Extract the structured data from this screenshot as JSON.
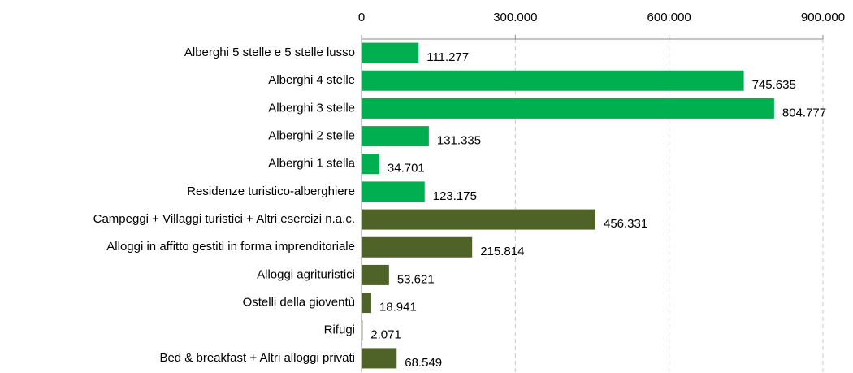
{
  "chart_data": {
    "type": "bar",
    "orientation": "horizontal",
    "categories": [
      "Alberghi 5 stelle e 5 stelle lusso",
      "Alberghi 4 stelle",
      "Alberghi 3 stelle",
      "Alberghi 2 stelle",
      "Alberghi 1 stella",
      "Residenze turistico-alberghiere",
      "Campeggi + Villaggi turistici + Altri esercizi n.a.c.",
      "Alloggi in affitto gestiti in forma imprenditoriale",
      "Alloggi agrituristici",
      "Ostelli della gioventù",
      "Rifugi",
      "Bed & breakfast + Altri alloggi privati"
    ],
    "values": [
      111277,
      745635,
      804777,
      131335,
      34701,
      123175,
      456331,
      215814,
      53621,
      18941,
      2071,
      68549
    ],
    "value_labels": [
      "111.277",
      "745.635",
      "804.777",
      "131.335",
      "34.701",
      "123.175",
      "456.331",
      "215.814",
      "53.621",
      "18.941",
      "2.071",
      "68.549"
    ],
    "colors": [
      "#00b050",
      "#00b050",
      "#00b050",
      "#00b050",
      "#00b050",
      "#00b050",
      "#4f6228",
      "#4f6228",
      "#4f6228",
      "#4f6228",
      "#4f6228",
      "#4f6228"
    ],
    "xlim": [
      0,
      900000
    ],
    "xticks": [
      0,
      {
        "value": 300000,
        "label": "300.000"
      },
      {
        "value": 600000,
        "label": "600.000"
      },
      {
        "value": 900000,
        "label": "900.000"
      }
    ],
    "grid": true
  }
}
